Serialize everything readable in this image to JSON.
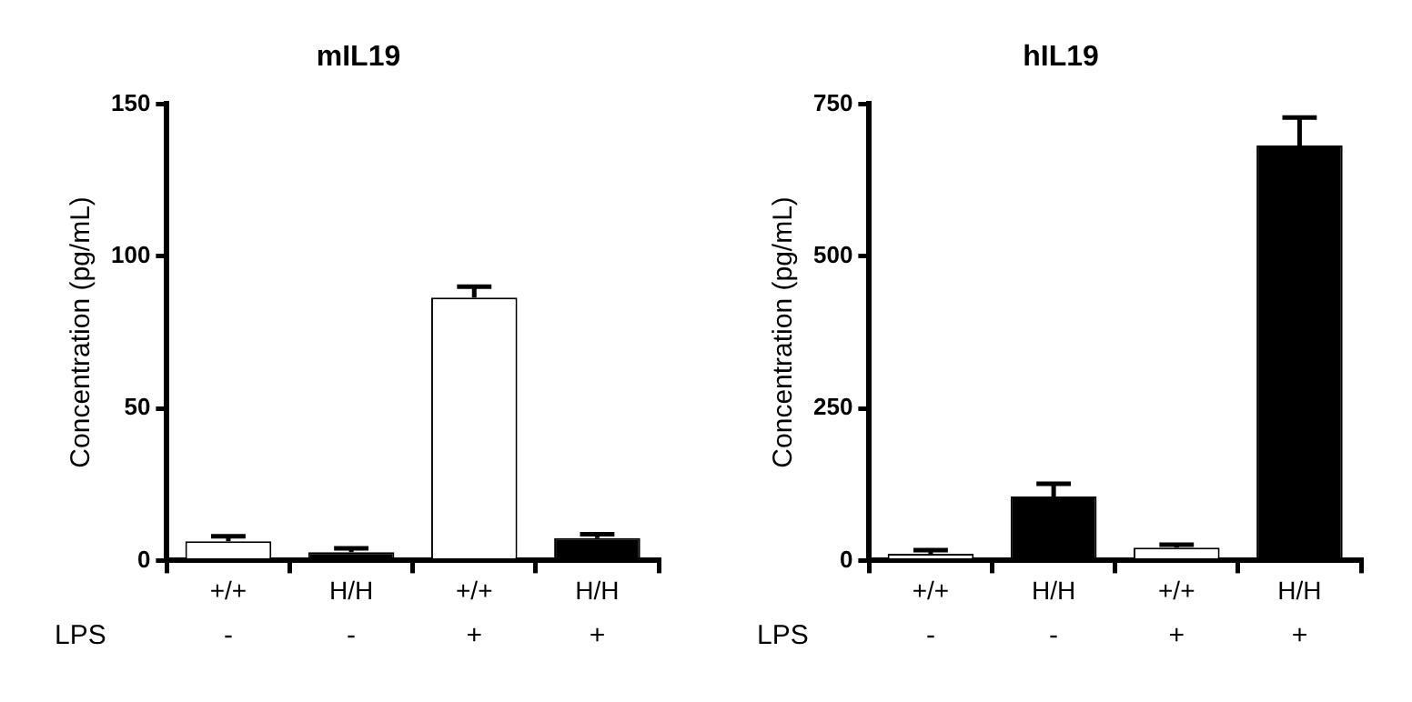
{
  "chart_data": [
    {
      "type": "bar",
      "title": "mIL19",
      "ylabel": "Concentration (pg/mL)",
      "categories": [
        "+/+",
        "H/H",
        "+/+",
        "H/H"
      ],
      "values": [
        6.3,
        2.7,
        86.4,
        7.4
      ],
      "colors": [
        "#ffffff",
        "#000000",
        "#ffffff",
        "#000000"
      ],
      "errors": [
        [
          6.3,
          8
        ],
        [
          2.7,
          4
        ],
        [
          86.4,
          90
        ],
        [
          7.4,
          8.6
        ]
      ],
      "ylim": [
        0,
        150
      ],
      "yticks": [
        0,
        50,
        100,
        150
      ],
      "grid": false,
      "legend": false,
      "annotations": [
        "LPS",
        "-",
        "-",
        "+",
        "+"
      ]
    },
    {
      "type": "bar",
      "title": "hIL19",
      "ylabel": "Concentration (pg/mL)",
      "categories": [
        "+/+",
        "H/H",
        "+/+",
        "H/H"
      ],
      "values": [
        11,
        105,
        21,
        682
      ],
      "colors": [
        "#ffffff",
        "#000000",
        "#ffffff",
        "#000000"
      ],
      "errors": [
        [
          11,
          17
        ],
        [
          105,
          126
        ],
        [
          21,
          26
        ],
        [
          682,
          728
        ]
      ],
      "ylim": [
        0,
        750
      ],
      "yticks": [
        0,
        250,
        500,
        750
      ],
      "grid": false,
      "legend": false,
      "annotations": [
        "LPS",
        "-",
        "-",
        "+",
        "+"
      ]
    }
  ]
}
